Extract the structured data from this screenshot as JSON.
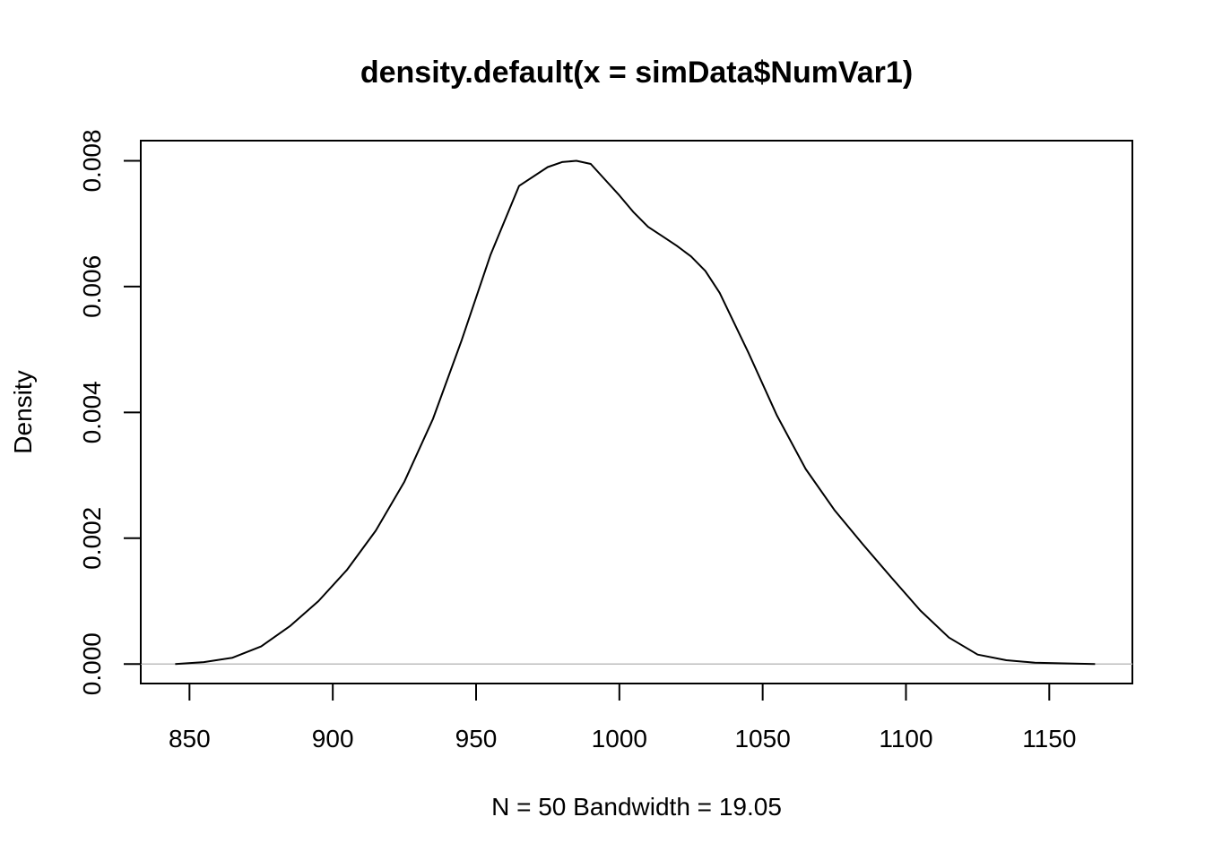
{
  "chart_data": {
    "type": "line",
    "title": "density.default(x = simData$NumVar1)",
    "xlabel": "N = 50   Bandwidth = 19.05",
    "ylabel": "Density",
    "xlim": [
      833,
      1179
    ],
    "ylim": [
      -0.00031,
      0.00832
    ],
    "x_ticks": [
      850,
      900,
      950,
      1000,
      1050,
      1100,
      1150
    ],
    "x_tick_labels": [
      "850",
      "900",
      "950",
      "1000",
      "1050",
      "1100",
      "1150"
    ],
    "y_ticks": [
      0,
      0.002,
      0.004,
      0.006,
      0.008
    ],
    "y_tick_labels": [
      "0.000",
      "0.002",
      "0.004",
      "0.006",
      "0.008"
    ],
    "grid": false,
    "baseline": {
      "y": 0,
      "color": "#bebebe"
    },
    "series": [
      {
        "color": "#000000",
        "x": [
          845,
          855,
          865,
          875,
          885,
          895,
          905,
          915,
          925,
          935,
          945,
          955,
          965,
          975,
          980,
          985,
          990,
          995,
          1000,
          1005,
          1010,
          1015,
          1020,
          1025,
          1030,
          1035,
          1045,
          1055,
          1065,
          1075,
          1085,
          1095,
          1105,
          1115,
          1125,
          1135,
          1145,
          1155,
          1166
        ],
        "values": [
          0.0,
          3e-05,
          0.0001,
          0.00028,
          0.0006,
          0.001,
          0.0015,
          0.00212,
          0.0029,
          0.0039,
          0.00515,
          0.0065,
          0.0076,
          0.0079,
          0.00798,
          0.008,
          0.00795,
          0.0077,
          0.00745,
          0.00718,
          0.00695,
          0.0068,
          0.00665,
          0.00648,
          0.00625,
          0.0059,
          0.00495,
          0.00395,
          0.0031,
          0.00245,
          0.0019,
          0.00137,
          0.00085,
          0.00042,
          0.00015,
          6e-05,
          2e-05,
          1e-05,
          0.0
        ]
      }
    ]
  }
}
